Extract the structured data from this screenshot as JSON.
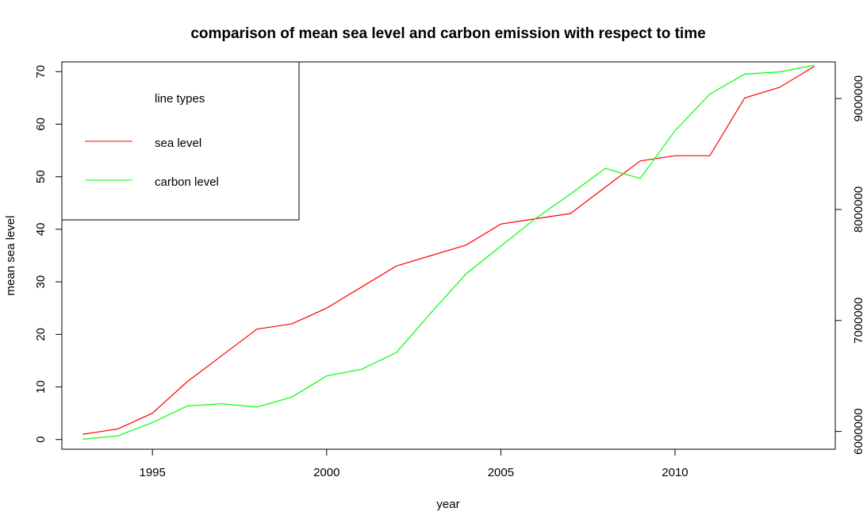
{
  "chart_data": {
    "type": "line",
    "title": "comparison of mean sea level and carbon emission with respect to time",
    "xlabel": "year",
    "ylabel": "mean sea level",
    "xlim": [
      1992.4,
      2014.6
    ],
    "ylim": [
      -1.85,
      71.85
    ],
    "y2lim": [
      5840000,
      9330000
    ],
    "xticks": [
      1995,
      2000,
      2005,
      2010
    ],
    "yticks": [
      0,
      10,
      20,
      30,
      40,
      50,
      60,
      70
    ],
    "y2ticks": [
      6000000,
      7000000,
      8000000,
      9000000
    ],
    "x": [
      1993,
      1994,
      1995,
      1996,
      1997,
      1998,
      1999,
      2000,
      2001,
      2002,
      2003,
      2004,
      2005,
      2006,
      2007,
      2008,
      2009,
      2010,
      2011,
      2012,
      2013,
      2014
    ],
    "series": [
      {
        "name": "sea level",
        "color": "#ff0000",
        "axis": "left",
        "values": [
          1,
          2,
          5,
          11,
          16,
          21,
          22,
          25,
          29,
          33,
          35,
          37,
          41,
          42,
          43,
          48,
          53,
          54,
          54,
          65,
          67,
          71
        ]
      },
      {
        "name": "carbon level",
        "color": "#00ff00",
        "axis": "right",
        "values": [
          5930000,
          5960000,
          6080000,
          6230000,
          6250000,
          6220000,
          6310000,
          6500000,
          6560000,
          6710000,
          7070000,
          7420000,
          7670000,
          7920000,
          8140000,
          8370000,
          8280000,
          8710000,
          9040000,
          9220000,
          9240000,
          9300000
        ]
      }
    ],
    "legend": {
      "placement": "top-left",
      "title": "line types",
      "entries": [
        "sea level",
        "carbon level"
      ]
    },
    "grid": false
  }
}
